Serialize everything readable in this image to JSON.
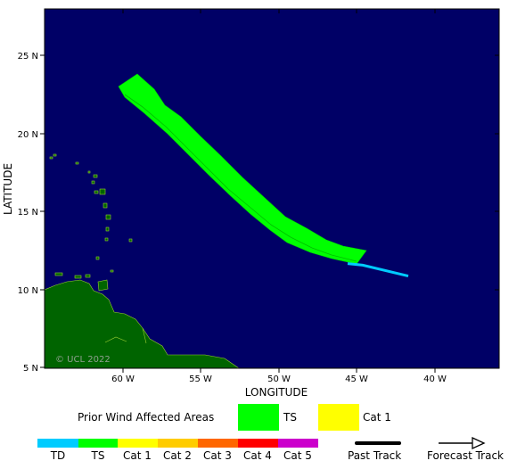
{
  "map": {
    "xlabel": "LONGITUDE",
    "ylabel": "LATITUDE",
    "lon_ticks": [
      "60 W",
      "55 W",
      "50 W",
      "45 W",
      "40 W"
    ],
    "lat_ticks": [
      "25 N",
      "20 N",
      "15 N",
      "10 N",
      "5 N"
    ],
    "lon_range": [
      -65,
      -35
    ],
    "lat_range": [
      5,
      28
    ],
    "copyright": "© UCL 2022",
    "ocean_color": "#000066",
    "land_color": "#006400",
    "wind_area_color": "#00ff00"
  },
  "legend": {
    "title": "Prior Wind Affected Areas",
    "areas": [
      {
        "label": "TS",
        "color": "#00ff00"
      },
      {
        "label": "Cat 1",
        "color": "#ffff00"
      }
    ],
    "scale": [
      {
        "label": "TD",
        "color": "#00ccff"
      },
      {
        "label": "TS",
        "color": "#00ff00"
      },
      {
        "label": "Cat 1",
        "color": "#ffff00"
      },
      {
        "label": "Cat 2",
        "color": "#ffcc00"
      },
      {
        "label": "Cat 3",
        "color": "#ff6600"
      },
      {
        "label": "Cat 4",
        "color": "#ff0000"
      },
      {
        "label": "Cat 5",
        "color": "#cc00cc"
      }
    ],
    "past_track": "Past Track",
    "forecast_track": "Forecast Track"
  },
  "track": {
    "forecast_color": "#00ccff",
    "forecast_points": [
      [
        -45.0,
        11.7
      ],
      [
        -44.0,
        11.6
      ],
      [
        -41.0,
        10.9
      ]
    ]
  }
}
